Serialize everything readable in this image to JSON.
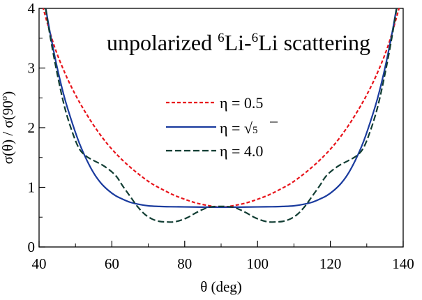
{
  "chart_data": {
    "type": "line",
    "title": {
      "prefix": "unpolarized ",
      "sup1": "6",
      "mid": "Li-",
      "sup2": "6",
      "suffix": "Li scattering"
    },
    "xlabel": "θ (deg)",
    "ylabel": {
      "text": "σ(θ) / σ(90",
      "sup": "o",
      "close": ")"
    },
    "xlim": [
      40,
      140
    ],
    "ylim": [
      0,
      4
    ],
    "xticks": [
      40,
      60,
      80,
      100,
      120,
      140
    ],
    "yticks": [
      0,
      1,
      2,
      3,
      4
    ],
    "legend_position": "center",
    "series": [
      {
        "name": "η = 0.5",
        "label": {
          "prefix": "η = ",
          "value": "0.5",
          "radicand": ""
        },
        "color": "#e8141b",
        "dash": "short-dash",
        "x": [
          41,
          44,
          47,
          50,
          53,
          56,
          59,
          62,
          65,
          68,
          71,
          74,
          77,
          80,
          83,
          86,
          89,
          90,
          91,
          94,
          97,
          100,
          103,
          106,
          109,
          112,
          115,
          118,
          121,
          124,
          127,
          130,
          133,
          136,
          139
        ],
        "y": [
          4.03,
          3.4,
          2.93,
          2.55,
          2.23,
          1.95,
          1.71,
          1.51,
          1.34,
          1.19,
          1.06,
          0.96,
          0.87,
          0.8,
          0.74,
          0.7,
          0.67,
          0.67,
          0.67,
          0.7,
          0.74,
          0.8,
          0.87,
          0.96,
          1.06,
          1.19,
          1.34,
          1.51,
          1.71,
          1.95,
          2.23,
          2.55,
          2.93,
          3.4,
          4.03
        ]
      },
      {
        "name": "η = √5",
        "label": {
          "prefix": "η = ",
          "value": "",
          "radicand": "5"
        },
        "color": "#1a3b9e",
        "dash": "solid",
        "x": [
          41,
          43,
          45,
          47,
          49,
          51,
          53,
          55,
          57,
          59,
          61,
          63,
          65,
          67,
          70,
          73,
          76,
          80,
          85,
          90,
          95,
          100,
          104,
          107,
          110,
          113,
          115,
          117,
          119,
          121,
          123,
          125,
          127,
          129,
          131,
          133,
          135,
          137,
          139
        ],
        "y": [
          4.3,
          3.6,
          3.0,
          2.5,
          2.1,
          1.75,
          1.47,
          1.24,
          1.07,
          0.95,
          0.86,
          0.8,
          0.75,
          0.72,
          0.69,
          0.68,
          0.675,
          0.672,
          0.668,
          0.667,
          0.668,
          0.672,
          0.675,
          0.68,
          0.69,
          0.72,
          0.75,
          0.8,
          0.86,
          0.95,
          1.07,
          1.24,
          1.47,
          1.75,
          2.1,
          2.5,
          3.0,
          3.6,
          4.3
        ]
      },
      {
        "name": "η = 4.0",
        "label": {
          "prefix": "η = ",
          "value": "4.0",
          "radicand": ""
        },
        "color": "#113d33",
        "dash": "long-dash",
        "x": [
          41,
          43,
          45,
          47,
          49,
          51,
          53,
          55,
          58,
          61,
          63,
          65,
          67,
          69,
          71,
          73,
          75,
          77,
          79,
          81,
          83,
          85,
          87,
          90,
          93,
          95,
          97,
          99,
          101,
          103,
          105,
          107,
          109,
          111,
          113,
          115,
          117,
          119,
          122,
          125,
          127,
          129,
          131,
          133,
          135,
          137,
          139
        ],
        "y": [
          4.3,
          3.55,
          2.9,
          2.35,
          1.95,
          1.65,
          1.52,
          1.45,
          1.35,
          1.2,
          1.02,
          0.85,
          0.68,
          0.55,
          0.47,
          0.43,
          0.42,
          0.42,
          0.45,
          0.5,
          0.57,
          0.63,
          0.67,
          0.68,
          0.67,
          0.63,
          0.57,
          0.5,
          0.45,
          0.42,
          0.42,
          0.43,
          0.47,
          0.55,
          0.68,
          0.85,
          1.02,
          1.2,
          1.35,
          1.45,
          1.52,
          1.65,
          1.95,
          2.35,
          2.9,
          3.55,
          4.3
        ]
      }
    ]
  }
}
